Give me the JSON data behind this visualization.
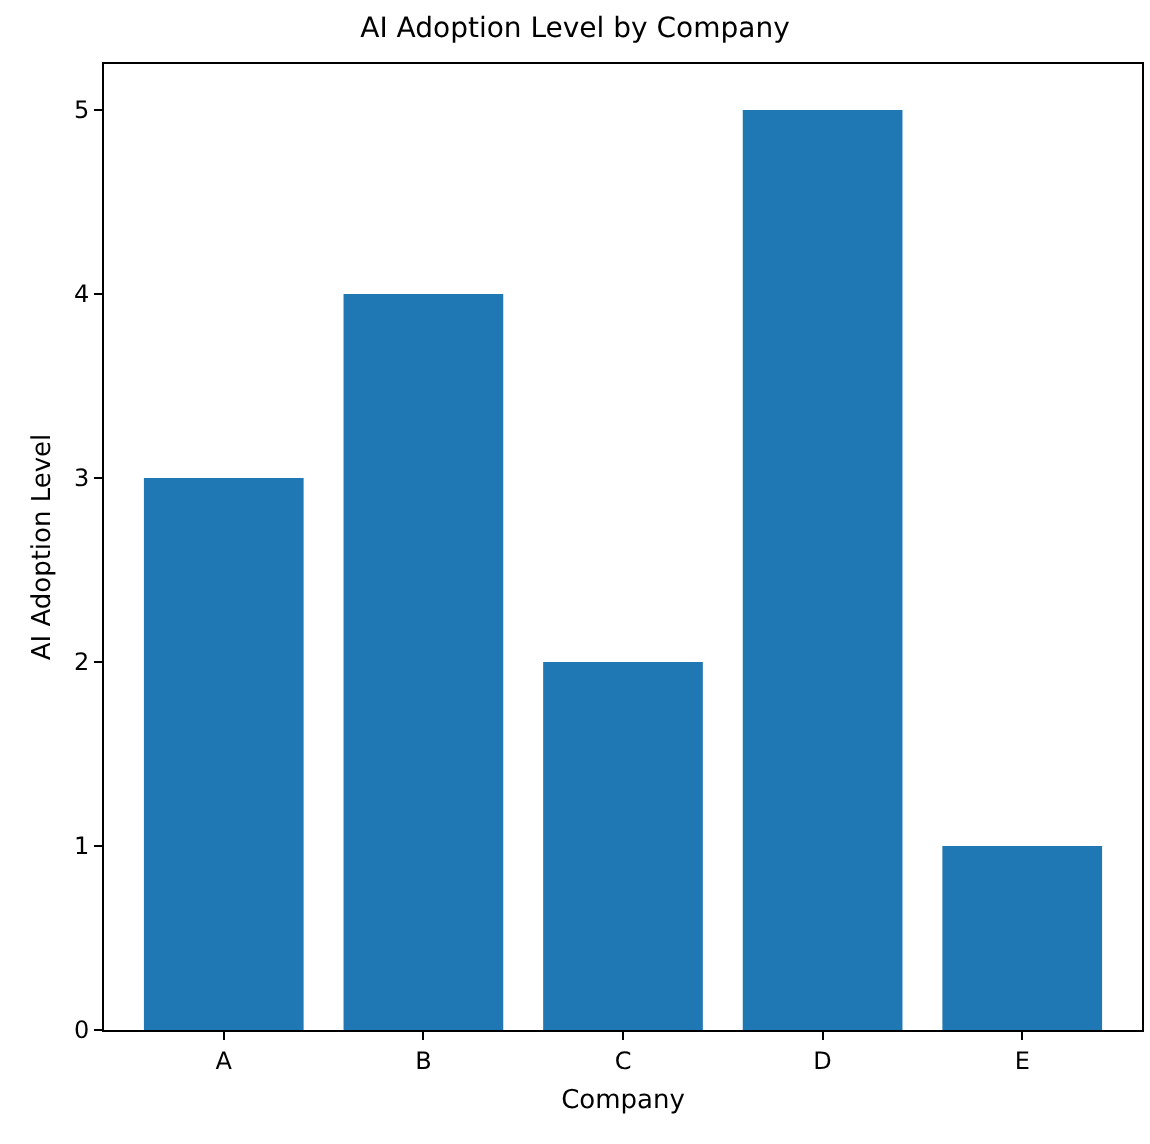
{
  "chart_data": {
    "type": "bar",
    "title": "AI Adoption Level by Company",
    "xlabel": "Company",
    "ylabel": "AI Adoption Level",
    "categories": [
      "A",
      "B",
      "C",
      "D",
      "E"
    ],
    "values": [
      3,
      4,
      2,
      5,
      1
    ],
    "color": "#1f77b4",
    "ylim": [
      0,
      5.25
    ],
    "yticks": [
      0,
      1,
      2,
      3,
      4,
      5
    ]
  }
}
